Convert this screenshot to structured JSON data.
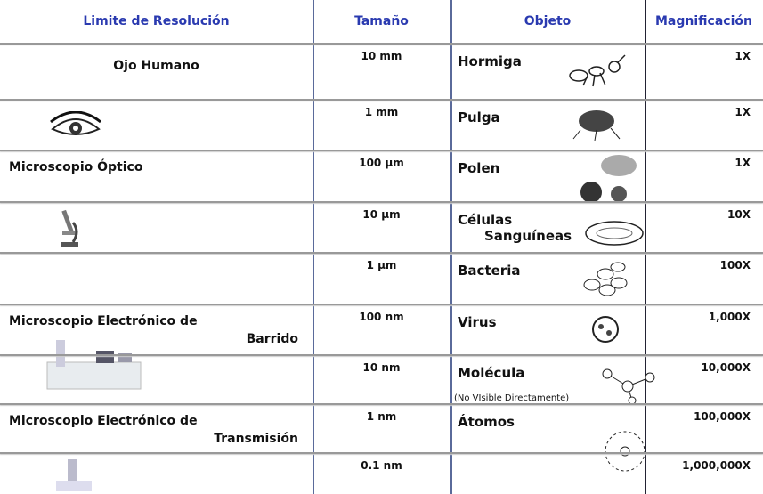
{
  "table": {
    "header": [
      "Limite de Resolución",
      "Tamaño",
      "Objeto",
      "Magnificación"
    ],
    "rows": [
      {
        "resolution": [
          "Ojo Humano"
        ],
        "size": "10 mm",
        "object": [
          "Hormiga"
        ],
        "magnification": "1X"
      },
      {
        "size": "1 mm",
        "object": [
          "Pulga"
        ],
        "magnification": "1X"
      },
      {
        "resolution": [
          "Microscopio Óptico"
        ],
        "size": "100 µm",
        "object": [
          "Polen"
        ],
        "magnification": "1X"
      },
      {
        "size": "10 µm",
        "object": [
          "Células",
          "Sanguíneas"
        ],
        "magnification": "10X"
      },
      {
        "size": "1 µm",
        "object": [
          "Bacteria"
        ],
        "magnification": "100X"
      },
      {
        "resolution": [
          "Microscopio Electrónico de",
          "Barrido"
        ],
        "size": "100 nm",
        "object": [
          "Virus"
        ],
        "magnification": "1,000X"
      },
      {
        "size": "10 nm",
        "object": [
          "Molécula"
        ],
        "note": "(No VIsible Directamente)",
        "magnification": "10,000X"
      },
      {
        "resolution": [
          "Microscopio Electrónico de",
          "Transmisión"
        ],
        "size": "1 nm",
        "object": [
          "Átomos"
        ],
        "magnification": "100,000X"
      },
      {
        "size": "0.1 nm",
        "magnification": "1,000,000X"
      }
    ]
  }
}
